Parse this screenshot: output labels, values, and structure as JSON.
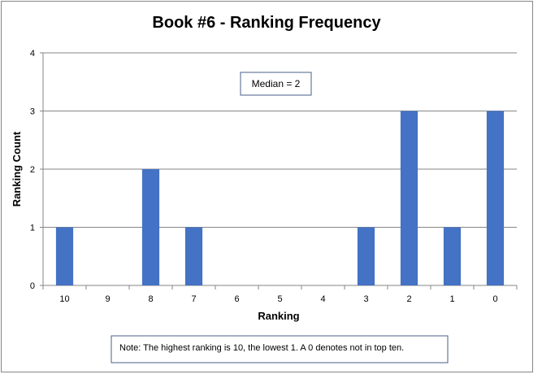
{
  "chart_data": {
    "type": "bar",
    "title": "Book #6 - Ranking Frequency",
    "xlabel": "Ranking",
    "ylabel": "Ranking Count",
    "categories": [
      "10",
      "9",
      "8",
      "7",
      "6",
      "5",
      "4",
      "3",
      "2",
      "1",
      "0"
    ],
    "values": [
      1,
      0,
      2,
      1,
      0,
      0,
      0,
      1,
      3,
      1,
      3
    ],
    "ylim": [
      0,
      4
    ],
    "yticks": [
      "0",
      "1",
      "2",
      "3",
      "4"
    ],
    "grid": true,
    "legend": "none",
    "bar_color": "#4472C4",
    "annotation": "Median = 2",
    "note": "Note: The highest ranking is 10, the lowest 1. A 0 denotes not in top ten."
  }
}
